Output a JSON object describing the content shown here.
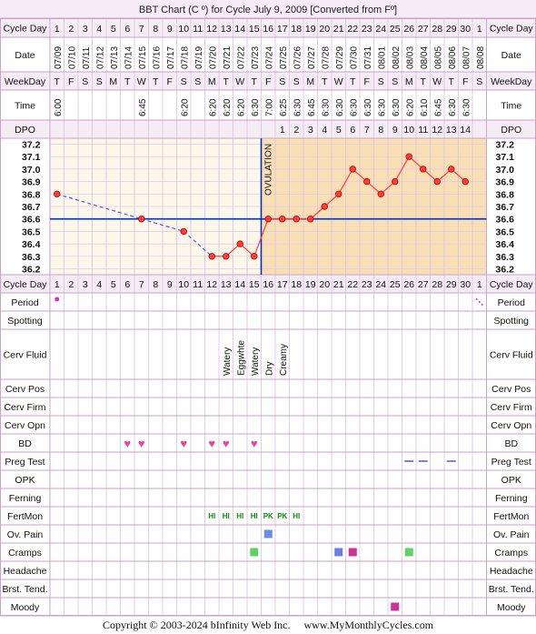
{
  "title": "BBT Chart (C º) for Cycle July 9, 2009  [Converted from Fº]",
  "footer": {
    "copyright": "Copyright © 2003-2024 bInfinity Web Inc.",
    "site": "www.MyMonthlyCycles.com"
  },
  "row_labels": {
    "cycle_day": "Cycle Day",
    "date": "Date",
    "weekday": "WeekDay",
    "time": "Time",
    "dpo": "DPO",
    "period": "Period",
    "spotting": "Spotting",
    "cerv_fluid": "Cerv Fluid",
    "cerv_pos": "Cerv Pos",
    "cerv_firm": "Cerv Firm",
    "cerv_opn": "Cerv Opn",
    "bd": "BD",
    "preg_test": "Preg Test",
    "opk": "OPK",
    "ferning": "Ferning",
    "fertmon": "FertMon",
    "ov_pain": "Ov. Pain",
    "cramps": "Cramps",
    "headache": "Headache",
    "brst_tend": "Brst. Tend.",
    "moody": "Moody"
  },
  "ovulation_label": "OVULATION",
  "colors": {
    "header_bg": "#f5ecf5",
    "border": "#c9a4c9",
    "pre_ovulation_bg": "#fbf7ea",
    "post_ovulation_bg": "#f9dfb6",
    "coverline": "#0033cc",
    "temp_line": "#ff3b3b",
    "temp_point": "#ff3b3b",
    "bd_heart": "#e8449a",
    "fertmon_text": "#138a13",
    "period_dot": "#cc33cc",
    "preg_test_dash": "#6b5bd6"
  },
  "chart_data": {
    "type": "line",
    "cycle_days": [
      "1",
      "2",
      "3",
      "4",
      "5",
      "6",
      "7",
      "8",
      "9",
      "10",
      "11",
      "12",
      "13",
      "14",
      "15",
      "16",
      "17",
      "18",
      "19",
      "20",
      "21",
      "22",
      "23",
      "24",
      "25",
      "26",
      "27",
      "28",
      "29",
      "30",
      "1"
    ],
    "dates": [
      "07/09",
      "07/10",
      "07/11",
      "07/12",
      "07/13",
      "07/14",
      "07/15",
      "07/16",
      "07/17",
      "07/18",
      "07/19",
      "07/20",
      "07/21",
      "07/22",
      "07/23",
      "07/24",
      "07/25",
      "07/26",
      "07/27",
      "07/28",
      "07/29",
      "07/30",
      "07/31",
      "08/01",
      "08/02",
      "08/03",
      "08/04",
      "08/05",
      "08/06",
      "08/07",
      "08/08"
    ],
    "weekdays": [
      "T",
      "F",
      "S",
      "S",
      "M",
      "T",
      "W",
      "T",
      "F",
      "S",
      "S",
      "M",
      "T",
      "W",
      "T",
      "F",
      "S",
      "S",
      "M",
      "T",
      "W",
      "T",
      "F",
      "S",
      "S",
      "M",
      "T",
      "W",
      "T",
      "F",
      "S"
    ],
    "times": [
      "6:00",
      "",
      "",
      "",
      "",
      "",
      "6:45",
      "",
      "",
      "6:20",
      "",
      "6:20",
      "6:20",
      "6:20",
      "6:30",
      "7:00",
      "6:25",
      "6:30",
      "6:45",
      "6:30",
      "6:30",
      "6:30",
      "6:30",
      "6:30",
      "6:30",
      "6:20",
      "6:10",
      "6:45",
      "6:30",
      "6:30",
      ""
    ],
    "dpo": [
      "",
      "",
      "",
      "",
      "",
      "",
      "",
      "",
      "",
      "",
      "",
      "",
      "",
      "",
      "",
      "",
      "1",
      "2",
      "3",
      "4",
      "5",
      "6",
      "7",
      "8",
      "9",
      "10",
      "11",
      "12",
      "13",
      "14",
      ""
    ],
    "y_ticks": [
      "37.2",
      "37.1",
      "37.0",
      "36.9",
      "36.8",
      "36.7",
      "36.6",
      "36.5",
      "36.4",
      "36.3",
      "36.2"
    ],
    "ylim": [
      36.2,
      37.2
    ],
    "coverline": 36.6,
    "ovulation_day": 16,
    "temperatures": [
      36.8,
      null,
      null,
      null,
      null,
      null,
      36.6,
      null,
      null,
      36.5,
      null,
      36.3,
      36.3,
      36.4,
      36.3,
      36.6,
      36.6,
      36.6,
      36.6,
      36.7,
      36.8,
      37.0,
      36.9,
      36.8,
      36.9,
      37.1,
      37.0,
      36.9,
      37.0,
      36.9,
      null
    ],
    "interpolated_days": [
      2,
      3,
      4,
      5,
      6,
      8,
      9,
      11
    ],
    "grid": true
  },
  "observations": {
    "period_days": [
      1
    ],
    "period_next_cycle_day": 31,
    "cerv_fluid": [
      {
        "day": 13,
        "text": "Watery"
      },
      {
        "day": 14,
        "text": "Eggwhte"
      },
      {
        "day": 15,
        "text": "Watery"
      },
      {
        "day": 16,
        "text": "Dry"
      },
      {
        "day": 17,
        "text": "Creamy"
      }
    ],
    "bd_days": [
      6,
      7,
      10,
      12,
      13,
      15
    ],
    "bd_symbol": "♥",
    "preg_test_days": [
      26,
      27,
      29
    ],
    "fertmon": [
      {
        "day": 12,
        "text": "HI"
      },
      {
        "day": 13,
        "text": "HI"
      },
      {
        "day": 14,
        "text": "HI"
      },
      {
        "day": 15,
        "text": "HI"
      },
      {
        "day": 16,
        "text": "PK"
      },
      {
        "day": 17,
        "text": "PK"
      },
      {
        "day": 18,
        "text": "HI"
      }
    ],
    "ov_pain": [
      {
        "day": 16,
        "color": "#6a8ee6"
      }
    ],
    "cramps": [
      {
        "day": 15,
        "color": "#5fd35f"
      },
      {
        "day": 21,
        "color": "#6a7ee6"
      },
      {
        "day": 22,
        "color": "#cc3399"
      },
      {
        "day": 26,
        "color": "#5fd35f"
      }
    ],
    "moody": [
      {
        "day": 25,
        "color": "#cc3399"
      }
    ]
  }
}
